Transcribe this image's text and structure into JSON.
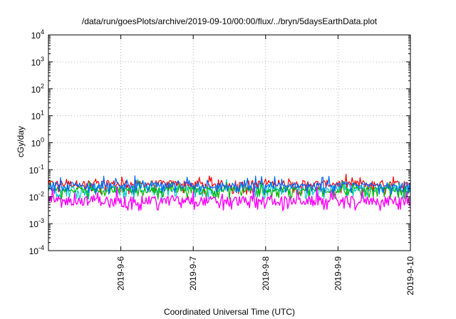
{
  "chart_data": {
    "type": "line",
    "title": "/data/run/goesPlots/archive/2019-09-10/00:00/flux/../bryn/5daysEarthData.plot",
    "xlabel": "Coordinated Universal Time (UTC)",
    "ylabel": "cGy/day",
    "y_scale": "log",
    "ylim": [
      0.0001,
      10000
    ],
    "xlim": [
      "2019-09-05T00:00",
      "2019-09-10T00:00"
    ],
    "y_ticks": [
      {
        "value": 0.0001,
        "base": "10",
        "exp": "-4"
      },
      {
        "value": 0.001,
        "base": "10",
        "exp": "-3"
      },
      {
        "value": 0.01,
        "base": "10",
        "exp": "-2"
      },
      {
        "value": 0.1,
        "base": "10",
        "exp": "-1"
      },
      {
        "value": 1,
        "base": "10",
        "exp": "0"
      },
      {
        "value": 10,
        "base": "10",
        "exp": "1"
      },
      {
        "value": 100,
        "base": "10",
        "exp": "2"
      },
      {
        "value": 1000,
        "base": "10",
        "exp": "3"
      },
      {
        "value": 10000,
        "base": "10",
        "exp": "4"
      }
    ],
    "x_ticks": [
      {
        "value": "2019-09-06T00:00",
        "label": "2019-9-6"
      },
      {
        "value": "2019-09-07T00:00",
        "label": "2019-9-7"
      },
      {
        "value": "2019-09-08T00:00",
        "label": "2019-9-8"
      },
      {
        "value": "2019-09-09T00:00",
        "label": "2019-9-9"
      },
      {
        "value": "2019-09-10T00:00",
        "label": "2019-9-10"
      }
    ],
    "grid": true,
    "legend": "none",
    "series": [
      {
        "color": "#ff0000",
        "typical": 0.03,
        "range": [
          0.012,
          0.07
        ]
      },
      {
        "color": "#00c8c8",
        "typical": 0.02,
        "range": [
          0.008,
          0.045
        ]
      },
      {
        "color": "#00b400",
        "typical": 0.018,
        "range": [
          0.008,
          0.04
        ]
      },
      {
        "color": "#0064ff",
        "typical": 0.026,
        "range": [
          0.012,
          0.06
        ]
      },
      {
        "color": "#ff00ff",
        "typical": 0.007,
        "range": [
          0.003,
          0.03
        ]
      }
    ]
  }
}
